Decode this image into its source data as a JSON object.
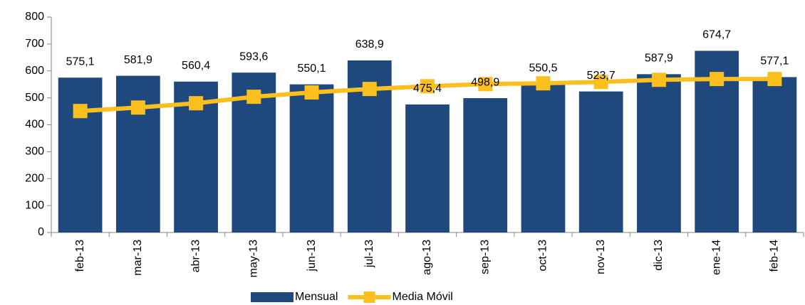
{
  "chart_data": {
    "type": "bar",
    "categories": [
      "feb-13",
      "mar-13",
      "abr-13",
      "may-13",
      "jun-13",
      "jul-13",
      "ago-13",
      "sep-13",
      "oct-13",
      "nov-13",
      "dic-13",
      "ene-14",
      "feb-14"
    ],
    "series": [
      {
        "name": "Mensual",
        "type": "bar",
        "color": "#1f497d",
        "values": [
          575.1,
          581.9,
          560.4,
          593.6,
          550.1,
          638.9,
          475.4,
          498.9,
          550.5,
          523.7,
          587.9,
          674.7,
          577.1
        ],
        "value_labels": [
          "575,1",
          "581,9",
          "560,4",
          "593,6",
          "550,1",
          "638,9",
          "475,4",
          "498,9",
          "550,5",
          "523,7",
          "587,9",
          "674,7",
          "577,1"
        ]
      },
      {
        "name": "Media Móvil",
        "type": "line",
        "color": "#fcc01e",
        "values": [
          451,
          464,
          480,
          504,
          520,
          533,
          543,
          551,
          554,
          559,
          567,
          570,
          570
        ]
      }
    ],
    "ylim": [
      0,
      800
    ],
    "yticks": [
      0,
      100,
      200,
      300,
      400,
      500,
      600,
      700,
      800
    ],
    "grid": false,
    "legend": "bottom"
  }
}
